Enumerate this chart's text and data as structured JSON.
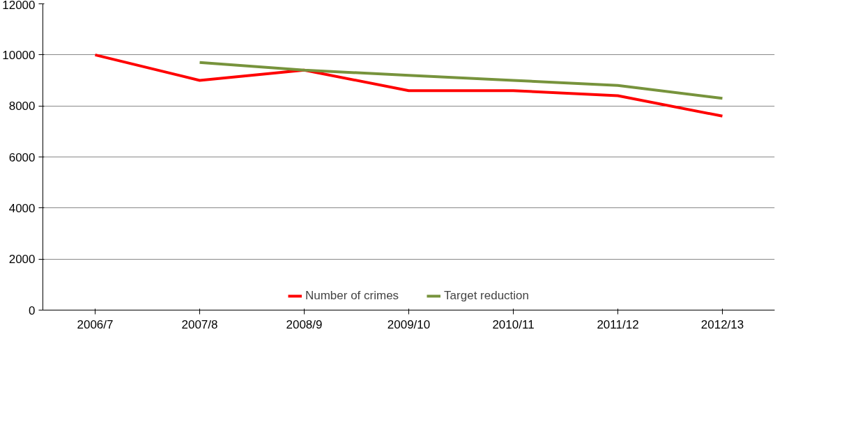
{
  "chart_data": {
    "type": "line",
    "categories": [
      "2006/7",
      "2007/8",
      "2008/9",
      "2009/10",
      "2010/11",
      "2011/12",
      "2012/13"
    ],
    "series": [
      {
        "name": "Number of crimes",
        "color": "#ff0000",
        "values": [
          10000,
          9000,
          9400,
          8600,
          8600,
          8400,
          7600
        ]
      },
      {
        "name": "Target reduction",
        "color": "#77933c",
        "values": [
          null,
          9700,
          9400,
          9200,
          9000,
          8800,
          8300
        ]
      }
    ],
    "ylim": [
      0,
      12000
    ],
    "yticks": [
      0,
      2000,
      4000,
      6000,
      8000,
      10000,
      12000
    ],
    "grid": "y",
    "legend": "bottom",
    "marker": "none",
    "line_style": "solid"
  }
}
